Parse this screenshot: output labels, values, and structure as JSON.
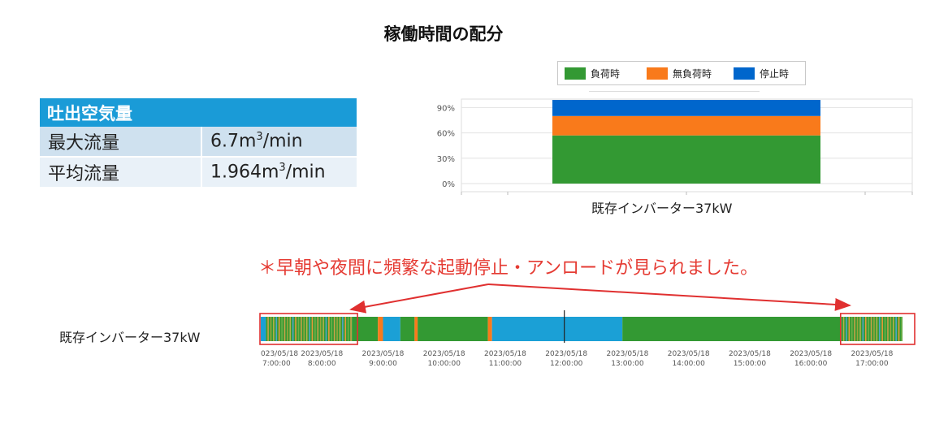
{
  "title": "稼働時間の配分",
  "table": {
    "header": "吐出空気量",
    "rows": [
      {
        "label": "最大流量",
        "value": "6.7m",
        "exp": "3",
        "unit": "/min"
      },
      {
        "label": "平均流量",
        "value": "1.964m",
        "exp": "3",
        "unit": "/min"
      }
    ]
  },
  "annotation": "＊早朝や夜間に頻繁な起動停止・アンロードが見られました。",
  "timeline_label": "既存インバーター37kW",
  "colors": {
    "load": "#339933",
    "unload": "#f97a1b",
    "stop": "#0066cc",
    "timeline_stop": "#1ba0d6",
    "highlight": "#e03030"
  },
  "chart_data": [
    {
      "type": "bar",
      "stacked": true,
      "categories": [
        "既存インバーター37kW"
      ],
      "series": [
        {
          "name": "負荷時",
          "values": [
            57
          ],
          "color": "#339933"
        },
        {
          "name": "無負荷時",
          "values": [
            23
          ],
          "color": "#f97a1b"
        },
        {
          "name": "停止時",
          "values": [
            19
          ],
          "color": "#0066cc"
        }
      ],
      "ytick_labels": [
        "0%",
        "30%",
        "60%",
        "90%"
      ],
      "yticks": [
        0,
        30,
        60,
        90
      ],
      "ylim": [
        0,
        100
      ],
      "grid": true,
      "legend": "top"
    },
    {
      "type": "timeline",
      "xlim": [
        "07:00",
        "17:30"
      ],
      "tick_labels": [
        {
          "date": "023/05/18",
          "time": "7:00:00"
        },
        {
          "date": "2023/05/18",
          "time": "8:00:00"
        },
        {
          "date": "2023/05/18",
          "time": "9:00:00"
        },
        {
          "date": "2023/05/18",
          "time": "10:00:00"
        },
        {
          "date": "2023/05/18",
          "time": "11:00:00"
        },
        {
          "date": "2023/05/18",
          "time": "12:00:00"
        },
        {
          "date": "2023/05/18",
          "time": "13:00:00"
        },
        {
          "date": "2023/05/18",
          "time": "14:00:00"
        },
        {
          "date": "2023/05/18",
          "time": "15:00:00"
        },
        {
          "date": "2023/05/18",
          "time": "16:00:00"
        },
        {
          "date": "2023/05/18",
          "time": "17:00:00"
        }
      ],
      "segments": [
        {
          "start": "07:00",
          "end": "07:05",
          "state": "stop"
        },
        {
          "start": "07:05",
          "end": "08:30",
          "state": "cycling"
        },
        {
          "start": "08:30",
          "end": "08:55",
          "state": "load"
        },
        {
          "start": "08:55",
          "end": "09:00",
          "state": "unload"
        },
        {
          "start": "09:00",
          "end": "09:17",
          "state": "stop"
        },
        {
          "start": "09:17",
          "end": "09:31",
          "state": "load"
        },
        {
          "start": "09:31",
          "end": "09:34",
          "state": "unload"
        },
        {
          "start": "09:34",
          "end": "10:43",
          "state": "load"
        },
        {
          "start": "10:43",
          "end": "10:47",
          "state": "unload"
        },
        {
          "start": "10:47",
          "end": "12:55",
          "state": "stop"
        },
        {
          "start": "12:55",
          "end": "16:30",
          "state": "load"
        },
        {
          "start": "16:30",
          "end": "17:30",
          "state": "cycling"
        }
      ],
      "marker_time": "11:58",
      "highlight_ranges": [
        [
          "07:00",
          "08:35"
        ],
        [
          "16:30",
          "17:30"
        ]
      ]
    }
  ]
}
